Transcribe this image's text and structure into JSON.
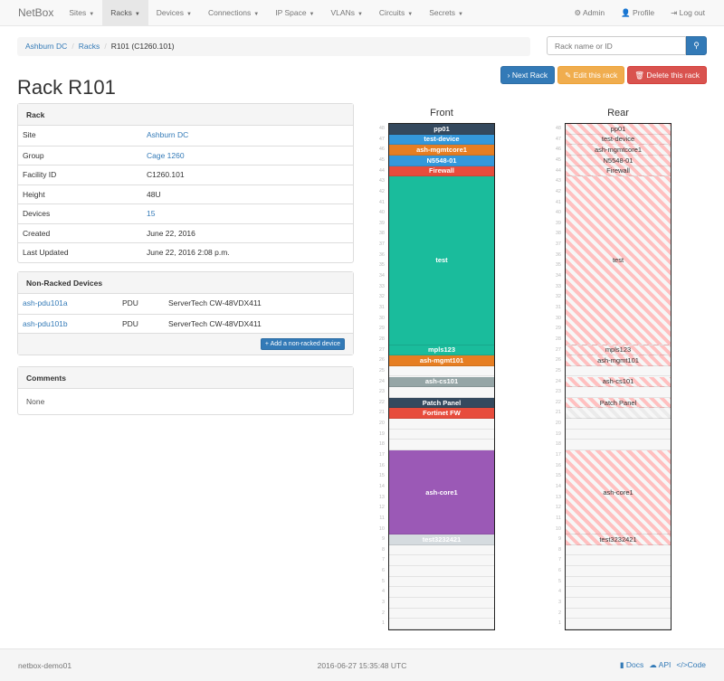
{
  "nav": {
    "brand": "NetBox",
    "items": [
      "Sites",
      "Racks",
      "Devices",
      "Connections",
      "IP Space",
      "VLANs",
      "Circuits",
      "Secrets"
    ],
    "active": "Racks",
    "right": [
      {
        "icon": "gear-icon",
        "label": "Admin"
      },
      {
        "icon": "user-icon",
        "label": "Profile"
      },
      {
        "icon": "logout-icon",
        "label": "Log out"
      }
    ]
  },
  "breadcrumb": [
    "Ashburn DC",
    "Racks",
    "R101 (C1260.101)"
  ],
  "search": {
    "placeholder": "Rack name or ID"
  },
  "buttons": {
    "next": "Next Rack",
    "edit": "Edit this rack",
    "delete": "Delete this rack"
  },
  "title": "Rack R101",
  "rack_panel": {
    "heading": "Rack",
    "rows": [
      {
        "k": "Site",
        "v": "Ashburn DC",
        "link": true
      },
      {
        "k": "Group",
        "v": "Cage 1260",
        "link": true
      },
      {
        "k": "Facility ID",
        "v": "C1260.101"
      },
      {
        "k": "Height",
        "v": "48U"
      },
      {
        "k": "Devices",
        "v": "15",
        "link": true
      },
      {
        "k": "Created",
        "v": "June 22, 2016"
      },
      {
        "k": "Last Updated",
        "v": "June 22, 2016 2:08 p.m."
      }
    ]
  },
  "nonracked": {
    "heading": "Non-Racked Devices",
    "rows": [
      {
        "name": "ash-pdu101a",
        "role": "PDU",
        "type": "ServerTech CW-48VDX411"
      },
      {
        "name": "ash-pdu101b",
        "role": "PDU",
        "type": "ServerTech CW-48VDX411"
      }
    ],
    "add_label": "Add a non-racked device"
  },
  "comments": {
    "heading": "Comments",
    "body": "None"
  },
  "elevation": {
    "front_label": "Front",
    "rear_label": "Rear",
    "units": 48,
    "devices": [
      {
        "name": "pp01",
        "top": 48,
        "height": 1,
        "color": "#34495e",
        "rear": true
      },
      {
        "name": "test-device",
        "top": 47,
        "height": 1,
        "color": "#3498db",
        "rear": true
      },
      {
        "name": "ash-mgmtcore1",
        "top": 46,
        "height": 1,
        "color": "#e67e22",
        "rear": true
      },
      {
        "name": "N5548-01",
        "top": 45,
        "height": 1,
        "color": "#3498db",
        "rear": true
      },
      {
        "name": "Firewall",
        "top": 44,
        "height": 1,
        "color": "#e74c3c",
        "rear": true
      },
      {
        "name": "test",
        "top": 43,
        "height": 16,
        "color": "#1abc9c",
        "rear": true
      },
      {
        "name": "mpls123",
        "top": 27,
        "height": 1,
        "color": "#1abc9c",
        "rear": true
      },
      {
        "name": "ash-mgmt101",
        "top": 26,
        "height": 1,
        "color": "#e67e22",
        "rear": true
      },
      {
        "name": "ash-cs101",
        "top": 24,
        "height": 1,
        "color": "#95a5a6",
        "rear": true
      },
      {
        "name": "Patch Panel",
        "top": 22,
        "height": 1,
        "color": "#34495e",
        "rear": true
      },
      {
        "name": "Fortinet FW",
        "top": 21,
        "height": 1,
        "color": "#e74c3c",
        "rear": false
      },
      {
        "name": "ash-core1",
        "top": 17,
        "height": 8,
        "color": "#9b59b6",
        "rear": true
      },
      {
        "name": "test3232421",
        "top": 9,
        "height": 1,
        "color": "#d5dbdf",
        "rear": true
      }
    ]
  },
  "footer": {
    "host": "netbox-demo01",
    "time": "2016-06-27 15:35:48 UTC",
    "links": [
      "Docs",
      "API",
      "Code"
    ]
  }
}
